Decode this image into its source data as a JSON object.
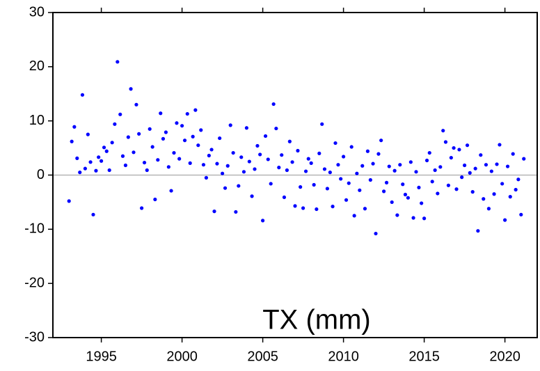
{
  "chart_data": {
    "type": "scatter",
    "annotation": "TX (mm)",
    "color": "#0000ff",
    "zero_line": true,
    "xlim": [
      1992,
      2022
    ],
    "xticks": [
      1995,
      2000,
      2005,
      2010,
      2015,
      2020
    ],
    "ylim": [
      -30,
      30
    ],
    "yticks": [
      -30,
      -20,
      -10,
      0,
      10,
      20,
      30
    ],
    "x": [
      1993.0,
      1993.17,
      1993.33,
      1993.5,
      1993.67,
      1993.83,
      1994.0,
      1994.17,
      1994.33,
      1994.5,
      1994.67,
      1994.83,
      1995.0,
      1995.17,
      1995.33,
      1995.5,
      1995.67,
      1995.83,
      1996.0,
      1996.17,
      1996.33,
      1996.5,
      1996.67,
      1996.83,
      1997.0,
      1997.17,
      1997.33,
      1997.5,
      1997.67,
      1997.83,
      1998.0,
      1998.17,
      1998.33,
      1998.5,
      1998.67,
      1998.83,
      1999.0,
      1999.17,
      1999.33,
      1999.5,
      1999.67,
      1999.83,
      2000.0,
      2000.17,
      2000.33,
      2000.5,
      2000.67,
      2000.83,
      2001.0,
      2001.17,
      2001.33,
      2001.5,
      2001.67,
      2001.83,
      2002.0,
      2002.17,
      2002.33,
      2002.5,
      2002.67,
      2002.83,
      2003.0,
      2003.17,
      2003.33,
      2003.5,
      2003.67,
      2003.83,
      2004.0,
      2004.17,
      2004.33,
      2004.5,
      2004.67,
      2004.83,
      2005.0,
      2005.17,
      2005.33,
      2005.5,
      2005.67,
      2005.83,
      2006.0,
      2006.17,
      2006.33,
      2006.5,
      2006.67,
      2006.83,
      2007.0,
      2007.17,
      2007.33,
      2007.5,
      2007.67,
      2007.83,
      2008.0,
      2008.17,
      2008.33,
      2008.5,
      2008.67,
      2008.83,
      2009.0,
      2009.17,
      2009.33,
      2009.5,
      2009.67,
      2009.83,
      2010.0,
      2010.17,
      2010.33,
      2010.5,
      2010.67,
      2010.83,
      2011.0,
      2011.17,
      2011.33,
      2011.5,
      2011.67,
      2011.83,
      2012.0,
      2012.17,
      2012.33,
      2012.5,
      2012.67,
      2012.83,
      2013.0,
      2013.17,
      2013.33,
      2013.5,
      2013.67,
      2013.83,
      2014.0,
      2014.17,
      2014.33,
      2014.5,
      2014.67,
      2014.83,
      2015.0,
      2015.17,
      2015.33,
      2015.5,
      2015.67,
      2015.83,
      2016.0,
      2016.17,
      2016.33,
      2016.5,
      2016.67,
      2016.83,
      2017.0,
      2017.17,
      2017.33,
      2017.5,
      2017.67,
      2017.83,
      2018.0,
      2018.17,
      2018.33,
      2018.5,
      2018.67,
      2018.83,
      2019.0,
      2019.17,
      2019.33,
      2019.5,
      2019.67,
      2019.83,
      2020.0,
      2020.17,
      2020.33,
      2020.5,
      2020.67,
      2020.83,
      2021.0,
      2021.17
    ],
    "values": [
      -4.8,
      6.2,
      8.9,
      3.1,
      0.5,
      14.8,
      1.2,
      7.5,
      2.4,
      -7.3,
      0.8,
      3.3,
      2.6,
      5.1,
      4.4,
      0.9,
      6.0,
      9.4,
      20.9,
      11.2,
      3.5,
      1.8,
      7.0,
      15.9,
      4.2,
      13.0,
      7.6,
      -6.1,
      2.3,
      0.9,
      8.5,
      5.2,
      -4.5,
      2.8,
      11.4,
      6.7,
      7.9,
      1.5,
      -2.9,
      4.1,
      9.6,
      3.0,
      9.1,
      6.4,
      11.3,
      2.2,
      7.1,
      12.0,
      5.5,
      8.3,
      1.9,
      -0.5,
      3.6,
      4.7,
      -6.7,
      2.1,
      6.8,
      0.3,
      -2.4,
      1.7,
      9.2,
      4.1,
      -6.8,
      -2.0,
      3.3,
      0.6,
      8.7,
      2.5,
      -3.9,
      1.1,
      5.4,
      3.8,
      -8.4,
      7.2,
      2.9,
      -1.6,
      13.1,
      8.6,
      1.4,
      3.7,
      -4.1,
      0.9,
      6.2,
      2.4,
      -5.7,
      4.5,
      -2.2,
      -6.1,
      0.7,
      3.0,
      2.2,
      -1.8,
      -6.3,
      4.0,
      9.4,
      1.1,
      -2.5,
      0.5,
      -5.8,
      5.9,
      1.9,
      -0.7,
      3.4,
      -4.6,
      -1.5,
      5.2,
      -7.5,
      0.3,
      -2.8,
      1.7,
      -6.2,
      4.4,
      -0.9,
      2.1,
      -10.8,
      3.9,
      6.4,
      -3.0,
      -1.4,
      1.6,
      -5.0,
      0.8,
      -7.4,
      1.9,
      -1.7,
      -3.6,
      -4.2,
      2.4,
      -7.9,
      0.6,
      -2.3,
      -5.2,
      -8.0,
      2.7,
      4.1,
      -1.2,
      0.9,
      -3.4,
      1.5,
      8.2,
      6.1,
      -1.9,
      3.2,
      5.0,
      -2.6,
      4.7,
      -0.4,
      1.8,
      5.5,
      0.4,
      -3.1,
      1.2,
      -10.3,
      3.7,
      -4.4,
      1.9,
      -6.2,
      0.7,
      -3.5,
      2.0,
      5.6,
      -1.6,
      -8.3,
      1.6,
      -4.0,
      3.9,
      -2.7,
      -0.8,
      -7.3,
      3.0
    ]
  }
}
